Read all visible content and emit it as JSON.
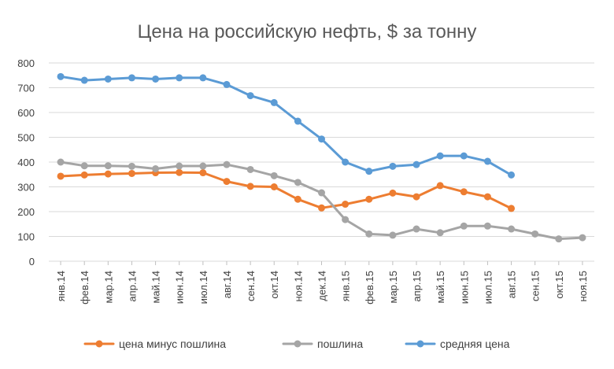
{
  "chart_data": {
    "type": "line",
    "title": "Цена на российскую нефть, $ за тонну",
    "xlabel": "",
    "ylabel": "",
    "ylim": [
      0,
      800
    ],
    "yticks": [
      "0",
      "100",
      "200",
      "300",
      "400",
      "500",
      "600",
      "700",
      "800"
    ],
    "grid": true,
    "legend_position": "bottom",
    "categories": [
      "янв.14",
      "фев.14",
      "мар.14",
      "апр.14",
      "май.14",
      "июн.14",
      "июл.14",
      "авг.14",
      "сен.14",
      "окт.14",
      "ноя.14",
      "дек.14",
      "янв.15",
      "фев.15",
      "мар.15",
      "апр.15",
      "май.15",
      "июн.15",
      "июл.15",
      "авг.15",
      "сен.15",
      "окт.15",
      "ноя.15"
    ],
    "series": [
      {
        "name": "цена минус пошлина",
        "color": "#ed7d31",
        "values": [
          343,
          348,
          352,
          354,
          357,
          358,
          357,
          322,
          302,
          300,
          250,
          215,
          230,
          250,
          275,
          260,
          305,
          280,
          260,
          213,
          null,
          null,
          null
        ]
      },
      {
        "name": "пошлина",
        "color": "#a5a5a5",
        "values": [
          400,
          385,
          385,
          383,
          373,
          384,
          384,
          390,
          370,
          345,
          318,
          276,
          168,
          110,
          105,
          130,
          115,
          142,
          142,
          130,
          110,
          90,
          95
        ]
      },
      {
        "name": "средняя цена",
        "color": "#5b9bd5",
        "values": [
          745,
          730,
          735,
          740,
          735,
          740,
          740,
          713,
          668,
          640,
          565,
          493,
          400,
          363,
          383,
          390,
          425,
          425,
          403,
          348,
          null,
          null,
          null
        ]
      }
    ]
  }
}
